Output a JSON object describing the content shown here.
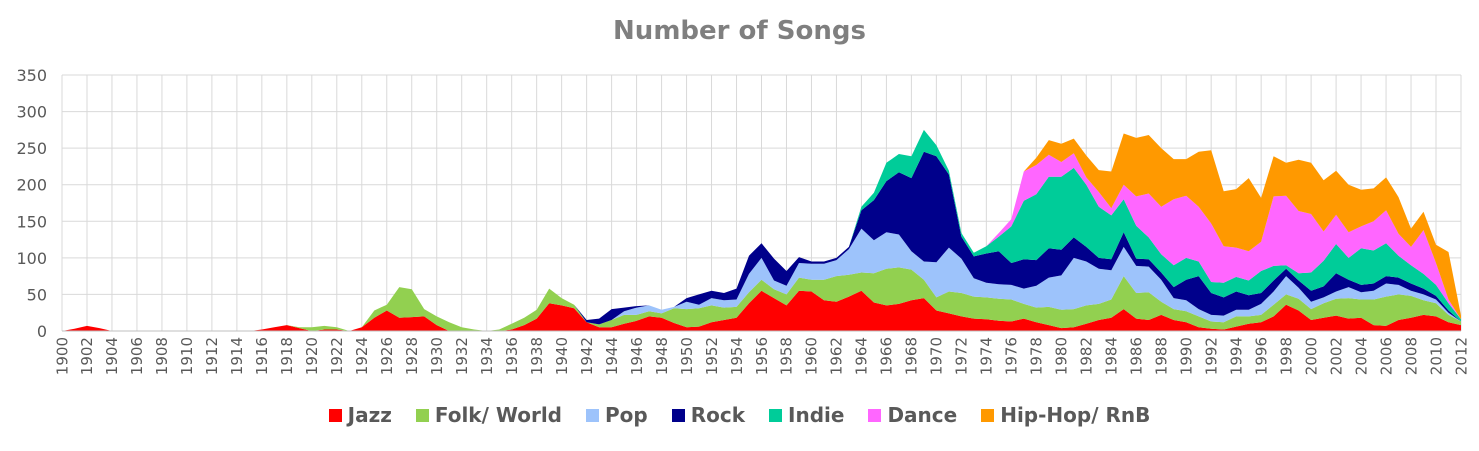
{
  "chart_data": {
    "type": "area",
    "stacked": true,
    "title": "Number of Songs",
    "xlabel": "",
    "ylabel": "",
    "ylim": [
      0,
      350
    ],
    "yticks": [
      0,
      50,
      100,
      150,
      200,
      250,
      300,
      350
    ],
    "x_start": 1900,
    "x_end": 2012,
    "x_tick_step": 2,
    "grid": true,
    "legend_position": "bottom",
    "series": [
      {
        "name": "Jazz",
        "color": "#ff0000",
        "values": [
          0,
          3,
          7,
          4,
          0,
          0,
          0,
          0,
          0,
          0,
          0,
          0,
          0,
          0,
          0,
          0,
          2,
          5,
          8,
          4,
          0,
          2,
          2,
          0,
          5,
          18,
          28,
          18,
          19,
          20,
          8,
          0,
          0,
          0,
          0,
          0,
          2,
          8,
          17,
          38,
          35,
          31,
          12,
          5,
          5,
          10,
          14,
          20,
          18,
          11,
          5,
          6,
          12,
          15,
          18,
          38,
          55,
          45,
          35,
          55,
          54,
          42,
          40,
          47,
          55,
          39,
          35,
          37,
          42,
          45,
          28,
          24,
          20,
          17,
          16,
          14,
          13,
          17,
          12,
          8,
          4,
          5,
          10,
          15,
          18,
          30,
          17,
          15,
          22,
          15,
          12,
          5,
          3,
          2,
          6,
          10,
          12,
          20,
          36,
          28,
          15,
          18,
          21,
          17,
          18,
          8,
          7,
          15,
          18,
          22,
          20,
          12,
          8
        ]
      },
      {
        "name": "Folk/ World",
        "color": "#92d050",
        "values": [
          0,
          0,
          0,
          0,
          0,
          0,
          0,
          0,
          0,
          0,
          0,
          0,
          0,
          0,
          0,
          0,
          0,
          0,
          0,
          1,
          5,
          5,
          3,
          0,
          0,
          10,
          8,
          42,
          38,
          10,
          12,
          12,
          5,
          2,
          0,
          2,
          8,
          10,
          12,
          20,
          10,
          5,
          0,
          4,
          10,
          12,
          8,
          7,
          6,
          20,
          25,
          25,
          23,
          17,
          15,
          15,
          15,
          12,
          15,
          18,
          16,
          28,
          35,
          30,
          25,
          40,
          50,
          50,
          42,
          25,
          18,
          30,
          32,
          30,
          30,
          30,
          30,
          20,
          20,
          25,
          25,
          25,
          25,
          22,
          25,
          45,
          35,
          38,
          18,
          15,
          15,
          15,
          10,
          10,
          14,
          10,
          10,
          16,
          14,
          16,
          15,
          20,
          23,
          28,
          25,
          35,
          40,
          35,
          30,
          20,
          18,
          10,
          5
        ]
      },
      {
        "name": "Pop",
        "color": "#9dc3fb",
        "values": [
          0,
          0,
          0,
          0,
          0,
          0,
          0,
          0,
          0,
          0,
          0,
          0,
          0,
          0,
          0,
          0,
          0,
          0,
          0,
          0,
          0,
          0,
          0,
          0,
          0,
          0,
          0,
          0,
          0,
          0,
          0,
          0,
          0,
          0,
          0,
          0,
          0,
          0,
          0,
          0,
          0,
          0,
          0,
          0,
          0,
          5,
          10,
          8,
          5,
          2,
          10,
          5,
          10,
          10,
          10,
          25,
          30,
          12,
          12,
          20,
          22,
          22,
          22,
          35,
          60,
          45,
          50,
          45,
          25,
          25,
          48,
          60,
          47,
          25,
          20,
          20,
          20,
          21,
          30,
          40,
          47,
          70,
          60,
          48,
          40,
          40,
          37,
          35,
          30,
          15,
          15,
          10,
          9,
          9,
          9,
          9,
          15,
          18,
          25,
          15,
          10,
          8,
          10,
          15,
          10,
          12,
          18,
          13,
          7,
          8,
          5,
          3,
          0
        ]
      },
      {
        "name": "Rock",
        "color": "#00008b",
        "values": [
          0,
          0,
          0,
          0,
          0,
          0,
          0,
          0,
          0,
          0,
          0,
          0,
          0,
          0,
          0,
          0,
          0,
          0,
          0,
          0,
          0,
          0,
          0,
          0,
          0,
          0,
          0,
          0,
          0,
          0,
          0,
          0,
          0,
          0,
          0,
          0,
          0,
          0,
          0,
          0,
          0,
          0,
          3,
          8,
          15,
          5,
          2,
          0,
          0,
          0,
          5,
          14,
          10,
          10,
          15,
          25,
          20,
          30,
          20,
          8,
          3,
          3,
          3,
          3,
          25,
          55,
          70,
          85,
          100,
          150,
          145,
          100,
          30,
          30,
          40,
          45,
          30,
          40,
          35,
          40,
          35,
          28,
          20,
          15,
          15,
          20,
          10,
          10,
          10,
          15,
          28,
          45,
          30,
          25,
          25,
          20,
          15,
          15,
          10,
          10,
          15,
          15,
          25,
          10,
          10,
          10,
          10,
          10,
          10,
          8,
          5,
          3,
          0
        ]
      },
      {
        "name": "Indie",
        "color": "#00cc99",
        "values": [
          0,
          0,
          0,
          0,
          0,
          0,
          0,
          0,
          0,
          0,
          0,
          0,
          0,
          0,
          0,
          0,
          0,
          0,
          0,
          0,
          0,
          0,
          0,
          0,
          0,
          0,
          0,
          0,
          0,
          0,
          0,
          0,
          0,
          0,
          0,
          0,
          0,
          0,
          0,
          0,
          0,
          0,
          0,
          0,
          0,
          0,
          0,
          0,
          0,
          0,
          0,
          0,
          0,
          0,
          0,
          0,
          0,
          0,
          0,
          0,
          0,
          0,
          0,
          0,
          5,
          10,
          25,
          25,
          30,
          30,
          15,
          5,
          5,
          5,
          10,
          20,
          50,
          80,
          90,
          98,
          100,
          95,
          85,
          70,
          60,
          45,
          45,
          30,
          25,
          30,
          30,
          20,
          15,
          20,
          20,
          20,
          30,
          20,
          5,
          10,
          25,
          35,
          40,
          30,
          50,
          45,
          45,
          30,
          25,
          20,
          15,
          10,
          3
        ]
      },
      {
        "name": "Dance",
        "color": "#ff66ff",
        "values": [
          0,
          0,
          0,
          0,
          0,
          0,
          0,
          0,
          0,
          0,
          0,
          0,
          0,
          0,
          0,
          0,
          0,
          0,
          0,
          0,
          0,
          0,
          0,
          0,
          0,
          0,
          0,
          0,
          0,
          0,
          0,
          0,
          0,
          0,
          0,
          0,
          0,
          0,
          0,
          0,
          0,
          0,
          0,
          0,
          0,
          0,
          0,
          0,
          0,
          0,
          0,
          0,
          0,
          0,
          0,
          0,
          0,
          0,
          0,
          0,
          0,
          0,
          0,
          0,
          0,
          0,
          0,
          0,
          0,
          0,
          0,
          0,
          0,
          0,
          0,
          5,
          10,
          40,
          40,
          30,
          20,
          20,
          10,
          20,
          10,
          20,
          40,
          60,
          65,
          90,
          85,
          75,
          80,
          50,
          40,
          40,
          40,
          95,
          95,
          85,
          80,
          40,
          40,
          35,
          30,
          40,
          45,
          30,
          25,
          60,
          30,
          5,
          0
        ]
      },
      {
        "name": "Hip-Hop/ RnB",
        "color": "#ff9900",
        "values": [
          0,
          0,
          0,
          0,
          0,
          0,
          0,
          0,
          0,
          0,
          0,
          0,
          0,
          0,
          0,
          0,
          0,
          0,
          0,
          0,
          0,
          0,
          0,
          0,
          0,
          0,
          0,
          0,
          0,
          0,
          0,
          0,
          0,
          0,
          0,
          0,
          0,
          0,
          0,
          0,
          0,
          0,
          0,
          0,
          0,
          0,
          0,
          0,
          0,
          0,
          0,
          0,
          0,
          0,
          0,
          0,
          0,
          0,
          0,
          0,
          0,
          0,
          0,
          0,
          0,
          0,
          0,
          0,
          0,
          0,
          0,
          0,
          0,
          0,
          0,
          0,
          0,
          0,
          10,
          20,
          25,
          20,
          30,
          30,
          50,
          70,
          80,
          80,
          80,
          55,
          50,
          75,
          100,
          75,
          80,
          100,
          60,
          55,
          45,
          70,
          70,
          70,
          60,
          65,
          50,
          45,
          45,
          50,
          25,
          25,
          25,
          65,
          5
        ]
      }
    ]
  }
}
